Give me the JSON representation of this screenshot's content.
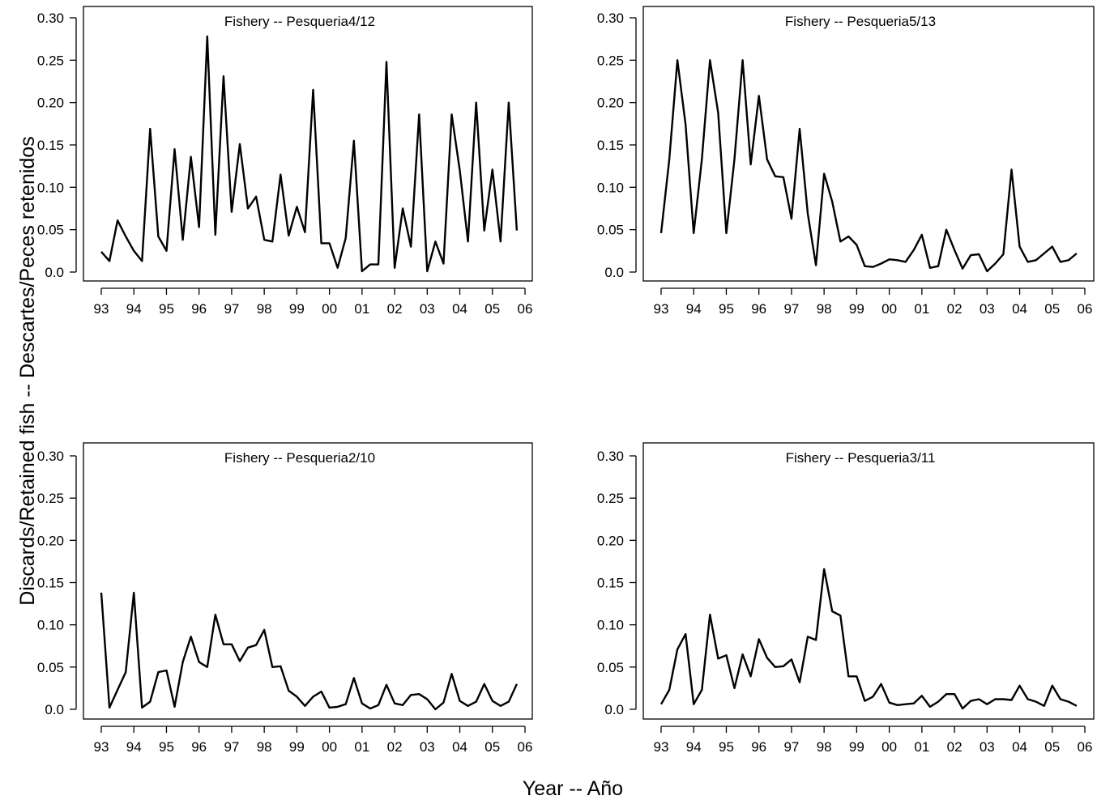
{
  "figure": {
    "xlabel": "Year -- Año",
    "ylabel": "Discards/Retained fish -- Descartes/Peces retenidos"
  },
  "chart_data": [
    {
      "type": "line",
      "title": "Fishery -- Pesqueria4/12",
      "xlim": [
        1993,
        2006
      ],
      "ylim": [
        0,
        0.3
      ],
      "x_ticks": [
        "93",
        "94",
        "95",
        "96",
        "97",
        "98",
        "99",
        "00",
        "01",
        "02",
        "03",
        "04",
        "05",
        "06"
      ],
      "y_ticks": [
        "0.0",
        "0.05",
        "0.10",
        "0.15",
        "0.20",
        "0.25",
        "0.30"
      ],
      "x": [
        1993.0,
        1993.25,
        1993.5,
        1993.75,
        1994.0,
        1994.25,
        1994.5,
        1994.75,
        1995.0,
        1995.25,
        1995.5,
        1995.75,
        1996.0,
        1996.25,
        1996.5,
        1996.75,
        1997.0,
        1997.25,
        1997.5,
        1997.75,
        1998.0,
        1998.25,
        1998.5,
        1998.75,
        1999.0,
        1999.25,
        1999.5,
        1999.75,
        2000.0,
        2000.25,
        2000.5,
        2000.75,
        2001.0,
        2001.25,
        2001.5,
        2001.75,
        2002.0,
        2002.25,
        2002.5,
        2002.75,
        2003.0,
        2003.25,
        2003.5,
        2003.75,
        2004.0,
        2004.25,
        2004.5,
        2004.75,
        2005.0,
        2005.25,
        2005.5,
        2005.75
      ],
      "values": [
        0.024,
        0.013,
        0.061,
        0.042,
        0.025,
        0.013,
        0.169,
        0.042,
        0.025,
        0.145,
        0.038,
        0.136,
        0.053,
        0.278,
        0.044,
        0.231,
        0.071,
        0.151,
        0.075,
        0.089,
        0.038,
        0.036,
        0.115,
        0.043,
        0.077,
        0.047,
        0.215,
        0.034,
        0.034,
        0.005,
        0.04,
        0.155,
        0.001,
        0.009,
        0.009,
        0.248,
        0.005,
        0.075,
        0.03,
        0.186,
        0.001,
        0.036,
        0.01,
        0.186,
        0.12,
        0.036,
        0.2,
        0.049,
        0.121,
        0.036,
        0.2,
        0.049
      ]
    },
    {
      "type": "line",
      "title": "Fishery -- Pesqueria5/13",
      "xlim": [
        1993,
        2006
      ],
      "ylim": [
        0,
        0.3
      ],
      "x_ticks": [
        "93",
        "94",
        "95",
        "96",
        "97",
        "98",
        "99",
        "00",
        "01",
        "02",
        "03",
        "04",
        "05",
        "06"
      ],
      "y_ticks": [
        "0.0",
        "0.05",
        "0.10",
        "0.15",
        "0.20",
        "0.25",
        "0.30"
      ],
      "x": [
        1993.0,
        1993.25,
        1993.5,
        1993.75,
        1994.0,
        1994.25,
        1994.5,
        1994.75,
        1995.0,
        1995.25,
        1995.5,
        1995.75,
        1996.0,
        1996.25,
        1996.5,
        1996.75,
        1997.0,
        1997.25,
        1997.5,
        1997.75,
        1998.0,
        1998.25,
        1998.5,
        1998.75,
        1999.0,
        1999.25,
        1999.5,
        1999.75,
        2000.0,
        2000.25,
        2000.5,
        2000.75,
        2001.0,
        2001.25,
        2001.5,
        2001.75,
        2002.0,
        2002.25,
        2002.5,
        2002.75,
        2003.0,
        2003.25,
        2003.5,
        2003.75,
        2004.0,
        2004.25,
        2004.5,
        2004.75,
        2005.0,
        2005.25,
        2005.5,
        2005.75
      ],
      "values": [
        0.046,
        0.133,
        0.25,
        0.174,
        0.046,
        0.133,
        0.25,
        0.188,
        0.046,
        0.133,
        0.25,
        0.127,
        0.208,
        0.133,
        0.113,
        0.112,
        0.063,
        0.169,
        0.069,
        0.008,
        0.116,
        0.083,
        0.036,
        0.042,
        0.032,
        0.007,
        0.006,
        0.01,
        0.015,
        0.014,
        0.012,
        0.026,
        0.044,
        0.005,
        0.007,
        0.05,
        0.026,
        0.004,
        0.02,
        0.021,
        0.001,
        0.01,
        0.021,
        0.121,
        0.03,
        0.012,
        0.014,
        0.022,
        0.03,
        0.012,
        0.014,
        0.022
      ]
    },
    {
      "type": "line",
      "title": "Fishery -- Pesqueria2/10",
      "xlim": [
        1993,
        2006
      ],
      "ylim": [
        0,
        0.3
      ],
      "x_ticks": [
        "93",
        "94",
        "95",
        "96",
        "97",
        "98",
        "99",
        "00",
        "01",
        "02",
        "03",
        "04",
        "05",
        "06"
      ],
      "y_ticks": [
        "0.0",
        "0.05",
        "0.10",
        "0.15",
        "0.20",
        "0.25",
        "0.30"
      ],
      "x": [
        1993.0,
        1993.25,
        1993.5,
        1993.75,
        1994.0,
        1994.25,
        1994.5,
        1994.75,
        1995.0,
        1995.25,
        1995.5,
        1995.75,
        1996.0,
        1996.25,
        1996.5,
        1996.75,
        1997.0,
        1997.25,
        1997.5,
        1997.75,
        1998.0,
        1998.25,
        1998.5,
        1998.75,
        1999.0,
        1999.25,
        1999.5,
        1999.75,
        2000.0,
        2000.25,
        2000.5,
        2000.75,
        2001.0,
        2001.25,
        2001.5,
        2001.75,
        2002.0,
        2002.25,
        2002.5,
        2002.75,
        2003.0,
        2003.25,
        2003.5,
        2003.75,
        2004.0,
        2004.25,
        2004.5,
        2004.75,
        2005.0,
        2005.25,
        2005.5,
        2005.75
      ],
      "values": [
        0.138,
        0.002,
        0.023,
        0.044,
        0.138,
        0.002,
        0.009,
        0.044,
        0.046,
        0.003,
        0.056,
        0.086,
        0.056,
        0.05,
        0.112,
        0.077,
        0.077,
        0.057,
        0.073,
        0.076,
        0.094,
        0.05,
        0.051,
        0.022,
        0.015,
        0.004,
        0.015,
        0.021,
        0.002,
        0.003,
        0.006,
        0.037,
        0.007,
        0.001,
        0.005,
        0.029,
        0.007,
        0.005,
        0.017,
        0.018,
        0.012,
        0.0,
        0.008,
        0.042,
        0.01,
        0.004,
        0.009,
        0.03,
        0.01,
        0.004,
        0.009,
        0.03
      ]
    },
    {
      "type": "line",
      "title": "Fishery -- Pesqueria3/11",
      "xlim": [
        1993,
        2006
      ],
      "ylim": [
        0,
        0.3
      ],
      "x_ticks": [
        "93",
        "94",
        "95",
        "96",
        "97",
        "98",
        "99",
        "00",
        "01",
        "02",
        "03",
        "04",
        "05",
        "06"
      ],
      "y_ticks": [
        "0.0",
        "0.05",
        "0.10",
        "0.15",
        "0.20",
        "0.25",
        "0.30"
      ],
      "x": [
        1993.0,
        1993.25,
        1993.5,
        1993.75,
        1994.0,
        1994.25,
        1994.5,
        1994.75,
        1995.0,
        1995.25,
        1995.5,
        1995.75,
        1996.0,
        1996.25,
        1996.5,
        1996.75,
        1997.0,
        1997.25,
        1997.5,
        1997.75,
        1998.0,
        1998.25,
        1998.5,
        1998.75,
        1999.0,
        1999.25,
        1999.5,
        1999.75,
        2000.0,
        2000.25,
        2000.5,
        2000.75,
        2001.0,
        2001.25,
        2001.5,
        2001.75,
        2002.0,
        2002.25,
        2002.5,
        2002.75,
        2003.0,
        2003.25,
        2003.5,
        2003.75,
        2004.0,
        2004.25,
        2004.5,
        2004.75,
        2005.0,
        2005.25,
        2005.5,
        2005.75
      ],
      "values": [
        0.006,
        0.023,
        0.071,
        0.089,
        0.006,
        0.023,
        0.112,
        0.06,
        0.064,
        0.025,
        0.065,
        0.039,
        0.083,
        0.061,
        0.05,
        0.051,
        0.059,
        0.032,
        0.086,
        0.082,
        0.166,
        0.116,
        0.111,
        0.039,
        0.039,
        0.01,
        0.015,
        0.03,
        0.008,
        0.005,
        0.006,
        0.007,
        0.016,
        0.003,
        0.009,
        0.018,
        0.018,
        0.001,
        0.01,
        0.012,
        0.006,
        0.012,
        0.012,
        0.011,
        0.028,
        0.012,
        0.009,
        0.004,
        0.028,
        0.012,
        0.009,
        0.004
      ]
    }
  ]
}
